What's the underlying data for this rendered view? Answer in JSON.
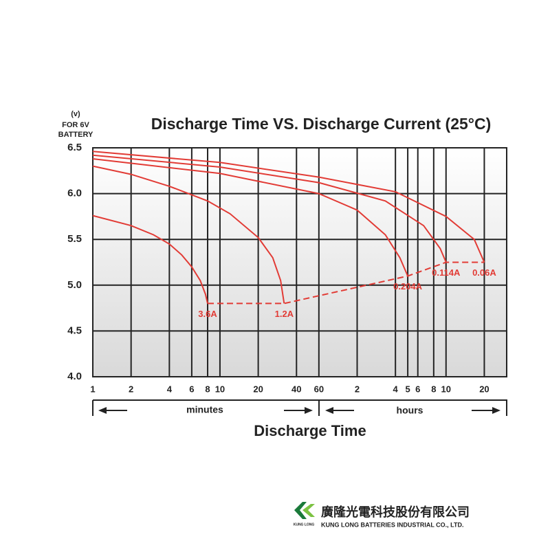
{
  "chart_data": {
    "type": "line",
    "title": "Discharge Time VS. Discharge Current (25°C)",
    "y_label": [
      "(v)",
      "FOR 6V",
      "BATTERY"
    ],
    "x_label": "Discharge Time",
    "x_units": [
      "minutes",
      "hours"
    ],
    "log_x": true,
    "grid": true,
    "xlim": [
      1,
      1800
    ],
    "ylim": [
      4.0,
      6.5
    ],
    "xticks": [
      1,
      2,
      4,
      6,
      8,
      10,
      20,
      40,
      60,
      {
        "value": 120,
        "label": "2"
      },
      {
        "value": 240,
        "label": "4"
      },
      {
        "value": 300,
        "label": "5"
      },
      {
        "value": 360,
        "label": "6"
      },
      {
        "value": 480,
        "label": "8"
      },
      {
        "value": 600,
        "label": "10"
      },
      {
        "value": 1200,
        "label": "20"
      }
    ],
    "yticks": [
      {
        "value": 4.0,
        "label": "4.0"
      },
      4.5,
      {
        "value": 5.0,
        "label": "5.0"
      },
      5.5,
      {
        "value": 6.0,
        "label": "6.0"
      },
      6.5
    ],
    "series": [
      {
        "name": "3.6A",
        "color": "#e23b35",
        "x": [
          1,
          2,
          3,
          4,
          5,
          6,
          7,
          7.7,
          8
        ],
        "values": [
          5.76,
          5.65,
          5.55,
          5.45,
          5.33,
          5.2,
          5.05,
          4.9,
          4.8
        ]
      },
      {
        "name": "1.2A",
        "color": "#e23b35",
        "x": [
          1,
          2,
          4,
          8,
          12,
          20,
          26,
          30,
          32
        ],
        "values": [
          6.3,
          6.21,
          6.08,
          5.92,
          5.78,
          5.52,
          5.3,
          5.05,
          4.8
        ]
      },
      {
        "name": "0.204A",
        "color": "#e23b35",
        "x": [
          1,
          10,
          60,
          120,
          200,
          260,
          300
        ],
        "values": [
          6.38,
          6.22,
          6.0,
          5.82,
          5.55,
          5.3,
          5.1
        ]
      },
      {
        "name": "0.114A",
        "color": "#e23b35",
        "x": [
          1,
          10,
          60,
          200,
          400,
          540,
          600
        ],
        "values": [
          6.42,
          6.29,
          6.12,
          5.92,
          5.65,
          5.4,
          5.25
        ]
      },
      {
        "name": "0.06A",
        "color": "#e23b35",
        "x": [
          1,
          10,
          60,
          240,
          600,
          1000,
          1200
        ],
        "values": [
          6.46,
          6.34,
          6.18,
          6.02,
          5.75,
          5.5,
          5.25
        ]
      }
    ],
    "cutoff": {
      "color": "#e23b35",
      "x": [
        8,
        32,
        300,
        600,
        1200
      ],
      "values": [
        4.8,
        4.8,
        5.1,
        5.25,
        5.25
      ]
    }
  },
  "logo": {
    "mark": "KUNG LONG",
    "name_zh": "廣隆光電科技股份有限公司",
    "name_en": "KUNG LONG BATTERIES INDUSTRIAL CO., LTD."
  }
}
